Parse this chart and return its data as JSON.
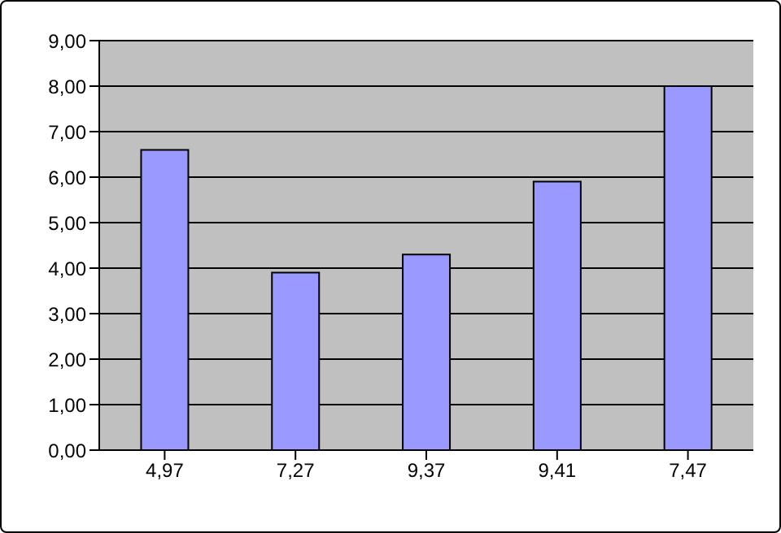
{
  "chart_data": {
    "type": "bar",
    "categories": [
      "4,97",
      "7,27",
      "9,37",
      "9,41",
      "7,47"
    ],
    "values": [
      6.6,
      3.9,
      4.3,
      5.9,
      8.0
    ],
    "color": "#9999ff",
    "ylim": [
      0,
      9
    ],
    "yticks": [
      {
        "value": 0,
        "label": "0,00"
      },
      {
        "value": 1,
        "label": "1,00"
      },
      {
        "value": 2,
        "label": "2,00"
      },
      {
        "value": 3,
        "label": "3,00"
      },
      {
        "value": 4,
        "label": "4,00"
      },
      {
        "value": 5,
        "label": "5,00"
      },
      {
        "value": 6,
        "label": "6,00"
      },
      {
        "value": 7,
        "label": "7,00"
      },
      {
        "value": 8,
        "label": "8,00"
      },
      {
        "value": 9,
        "label": "9,00"
      }
    ],
    "grid": "y",
    "legend": false
  }
}
